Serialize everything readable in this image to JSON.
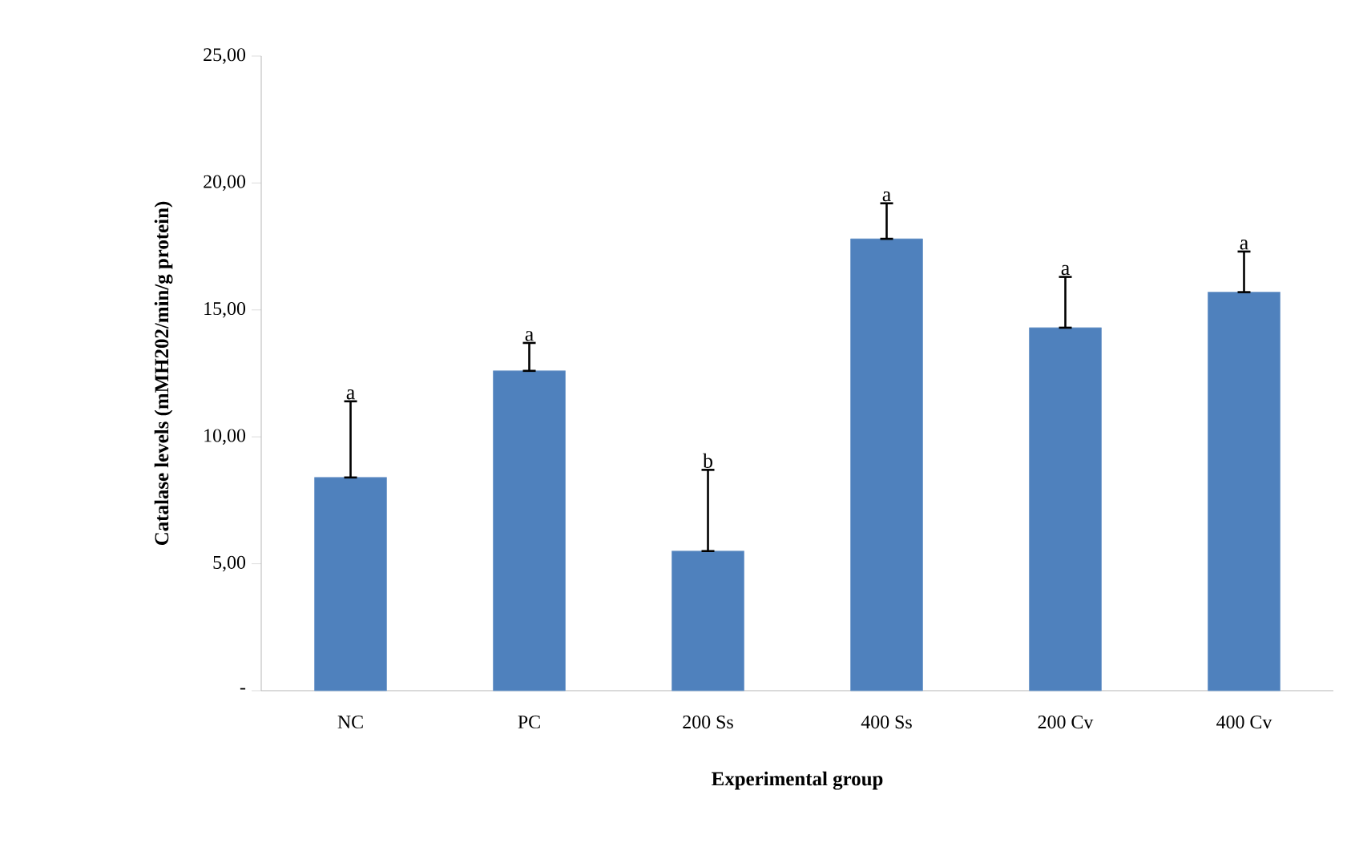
{
  "chart_data": {
    "type": "bar",
    "xlabel": "Experimental group",
    "ylabel": "Catalase levels (mMH202/min/g protein)",
    "categories": [
      "NC",
      "PC",
      "200 Ss",
      "400 Ss",
      "200 Cv",
      "400 Cv"
    ],
    "values": [
      8.4,
      12.6,
      5.5,
      17.8,
      14.3,
      15.7
    ],
    "errors": [
      [
        8.4,
        11.4
      ],
      [
        12.6,
        13.7
      ],
      [
        5.5,
        8.7
      ],
      [
        17.8,
        19.2
      ],
      [
        14.3,
        16.3
      ],
      [
        15.7,
        17.3
      ]
    ],
    "color": "#4f81bd",
    "ylim": [
      0,
      25
    ],
    "yticks": [
      {
        "value": 0,
        "label": "-"
      },
      {
        "value": 5,
        "label": "5,00"
      },
      {
        "value": 10,
        "label": "10,00"
      },
      {
        "value": 15,
        "label": "15,00"
      },
      {
        "value": 20,
        "label": "20,00"
      },
      {
        "value": 25,
        "label": "25,00"
      }
    ],
    "annotations": [
      {
        "text": "a",
        "x": "NC",
        "y": 11.4
      },
      {
        "text": "a",
        "x": "PC",
        "y": 13.7
      },
      {
        "text": "b",
        "x": "200 Ss",
        "y": 8.7
      },
      {
        "text": "a",
        "x": "400 Ss",
        "y": 19.2
      },
      {
        "text": "a",
        "x": "200 Cv",
        "y": 16.3
      },
      {
        "text": "a",
        "x": "400 Cv",
        "y": 17.3
      }
    ],
    "grid": false
  }
}
